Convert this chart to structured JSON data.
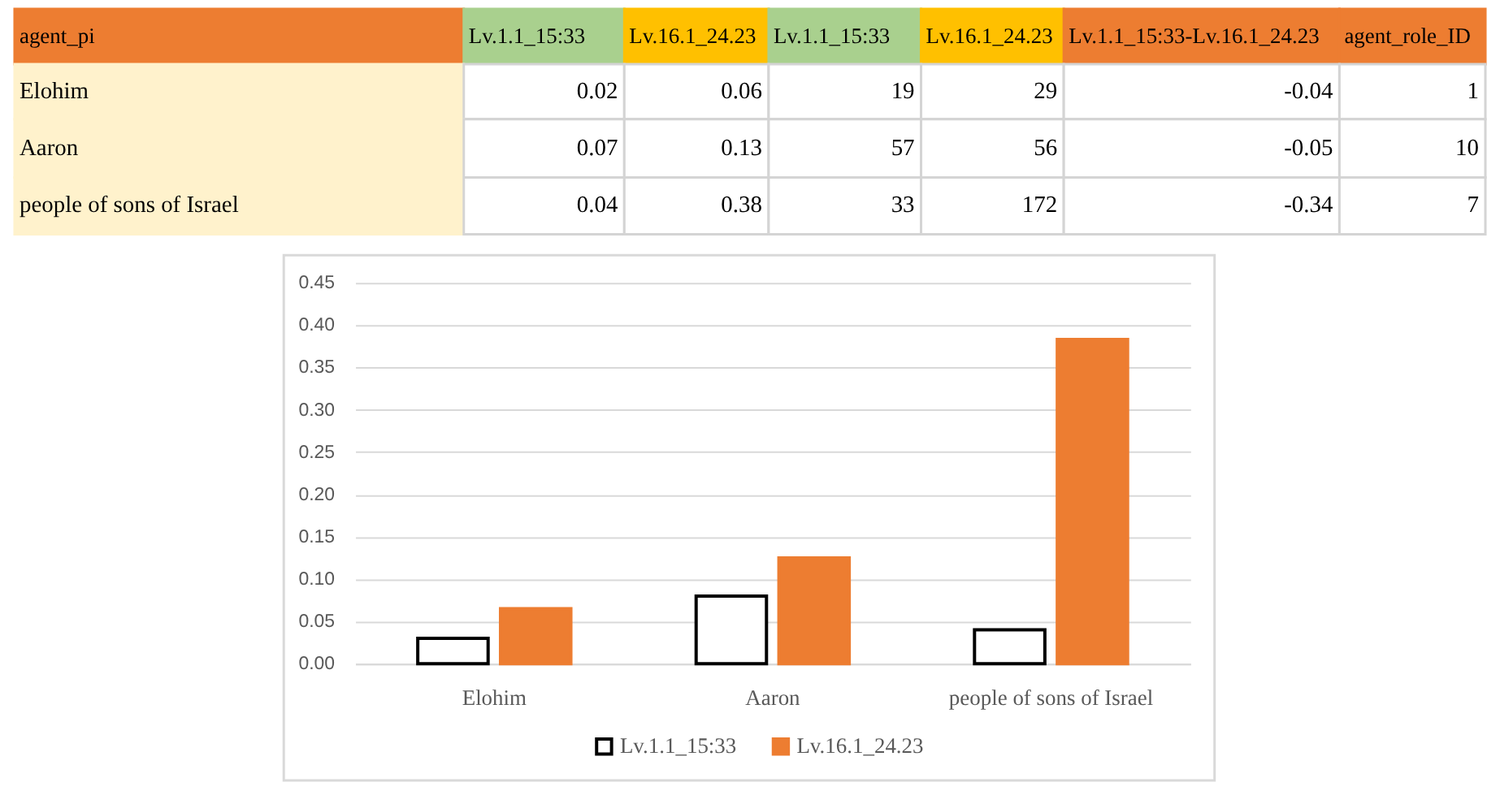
{
  "chart_data": [
    {
      "type": "other",
      "categories": [
        "agent_pi",
        "Lv.1.1_15:33",
        "Lv.16.1_24.23",
        "Lv.1.1_15:33",
        "Lv.16.1_24.23",
        "Lv.1.1_15:33-Lv.16.1_24.23",
        "agent_role_ID"
      ],
      "colors": [
        "#ed7d31",
        "#a9d08e",
        "#ffc000",
        "#a9d08e",
        "#ffc000",
        "#ed7d31",
        "#ed7d31"
      ],
      "color": "#fff2cc",
      "cell_labels": [
        [
          "Elohim",
          "0.02",
          "0.06",
          "19",
          "29",
          "-0.04",
          "1"
        ],
        [
          "Aaron",
          "0.07",
          "0.13",
          "57",
          "56",
          "-0.05",
          "10"
        ],
        [
          "people of sons of Israel",
          "0.04",
          "0.38",
          "33",
          "172",
          "-0.34",
          "7"
        ]
      ]
    },
    {
      "type": "bar",
      "categories": [
        "Elohim",
        "Aaron",
        "people of sons of Israel"
      ],
      "series": [
        {
          "name": "Lv.1.1_15:33",
          "color": "#000000",
          "values": [
            0.03,
            0.08,
            0.04
          ]
        },
        {
          "name": "Lv.16.1_24.23",
          "color": "#ed7d31",
          "values": [
            0.065,
            0.125,
            0.383
          ]
        }
      ],
      "ylim": [
        0,
        0.45
      ],
      "yticks": [
        {
          "value": 0,
          "label": "0.00"
        },
        0.05,
        {
          "value": 0.1,
          "label": "0.10"
        },
        0.15,
        {
          "value": 0.2,
          "label": "0.20"
        },
        0.25,
        {
          "value": 0.3,
          "label": "0.30"
        },
        0.35,
        {
          "value": 0.4,
          "label": "0.40"
        },
        0.45
      ],
      "grid": "y",
      "legend": "bottom"
    }
  ]
}
